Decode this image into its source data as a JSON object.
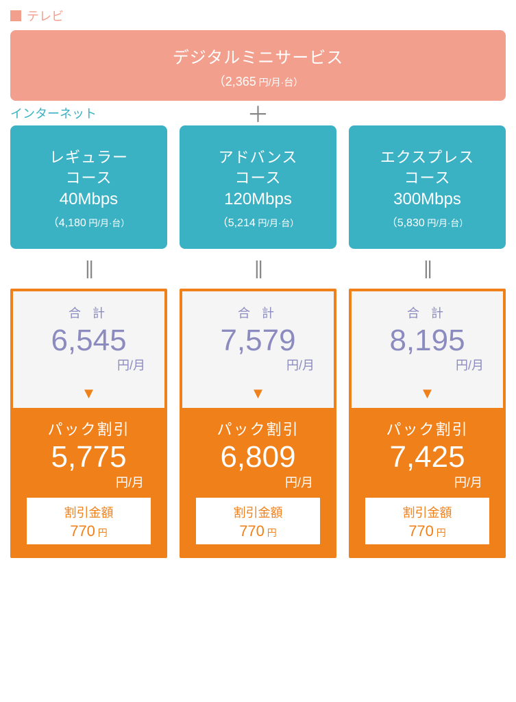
{
  "colors": {
    "tv_accent": "#f29f8d",
    "tv_box_bg": "#f29f8d",
    "internet_accent": "#3bb1c4",
    "internet_box_bg": "#3bb1c4",
    "result_border": "#f08019",
    "pack_bg": "#f08019",
    "total_bg": "#f5f5f5",
    "total_text": "#8b8bc0",
    "arrow_color": "#f08019",
    "plus_equals": "#888888",
    "white": "#ffffff"
  },
  "tv": {
    "section_label": "テレビ",
    "title": "デジタルミニサービス",
    "price_prefix": "（",
    "price_value": "2,365",
    "price_unit": " 円/月·台）"
  },
  "plus_symbol": "＋",
  "internet": {
    "section_label": "インターネット",
    "equals_symbol": "||",
    "arrow_symbol": "▼",
    "plans": [
      {
        "name_line1": "レギュラー",
        "name_line2": "コース",
        "speed": "40Mbps",
        "price_prefix": "（",
        "price_value": "4,180",
        "price_unit": " 円/月·台）",
        "total_label": "合 計",
        "total_value": "6,545",
        "total_unit": "円/月",
        "pack_label": "パック割引",
        "pack_value": "5,775",
        "pack_unit": "円/月",
        "discount_label": "割引金額",
        "discount_value": "770",
        "discount_unit": " 円"
      },
      {
        "name_line1": "アドバンス",
        "name_line2": "コース",
        "speed": "120Mbps",
        "price_prefix": "（",
        "price_value": "5,214",
        "price_unit": " 円/月·台）",
        "total_label": "合 計",
        "total_value": "7,579",
        "total_unit": "円/月",
        "pack_label": "パック割引",
        "pack_value": "6,809",
        "pack_unit": "円/月",
        "discount_label": "割引金額",
        "discount_value": "770",
        "discount_unit": " 円"
      },
      {
        "name_line1": "エクスプレス",
        "name_line2": "コース",
        "speed": "300Mbps",
        "price_prefix": "（",
        "price_value": "5,830",
        "price_unit": " 円/月·台）",
        "total_label": "合 計",
        "total_value": "8,195",
        "total_unit": "円/月",
        "pack_label": "パック割引",
        "pack_value": "7,425",
        "pack_unit": "円/月",
        "discount_label": "割引金額",
        "discount_value": "770",
        "discount_unit": " 円"
      }
    ]
  }
}
